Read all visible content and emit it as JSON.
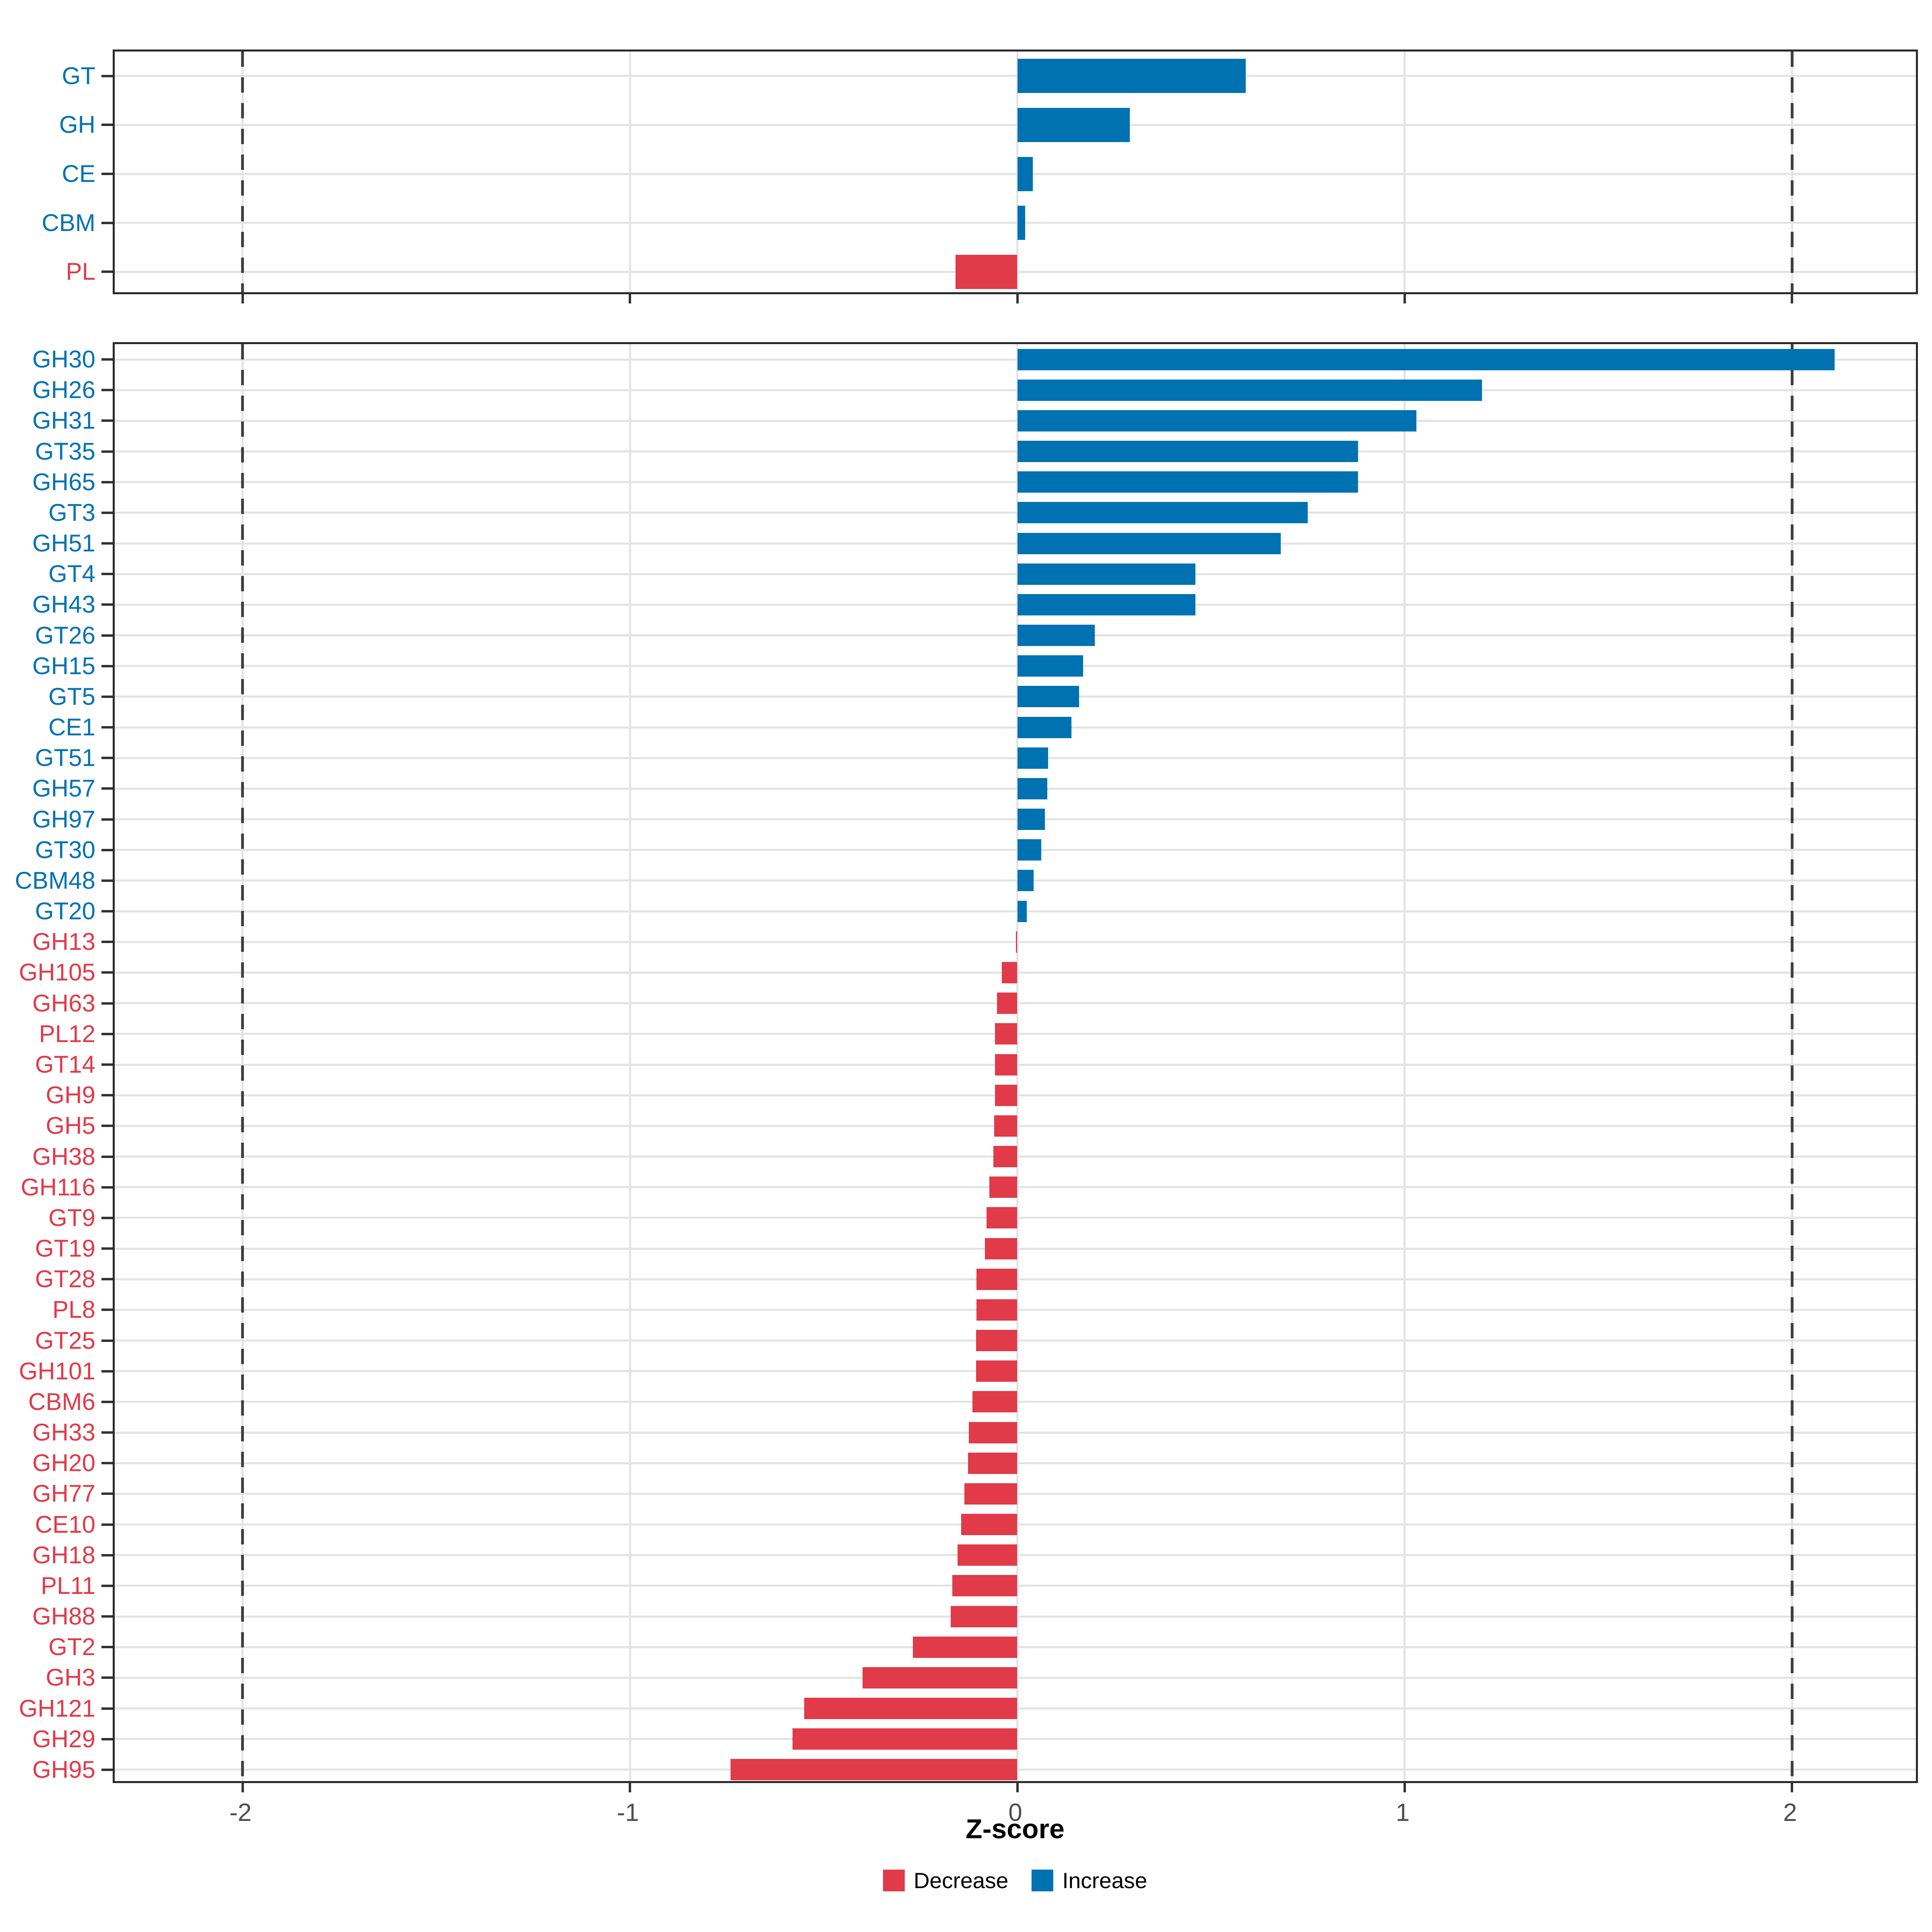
{
  "axis": {
    "xlabel": "Z-score",
    "ticks": [
      {
        "label": "-2",
        "value": -2
      },
      {
        "label": "-1",
        "value": -1
      },
      {
        "label": "0",
        "value": 0
      },
      {
        "label": "1",
        "value": 1
      },
      {
        "label": "2",
        "value": 2
      }
    ],
    "xlim": [
      -2.33,
      2.33
    ],
    "dashed_lines_at": [
      -2,
      2
    ],
    "grid": "on"
  },
  "colors": {
    "increase": "#0072b2",
    "decrease": "#e13a49",
    "grid": "#e3e3e3",
    "dash": "#404040",
    "tick_text": "#4d4d4d",
    "axis_line": "#2a2a2a"
  },
  "legend": {
    "items": [
      {
        "label": "Decrease",
        "color": "#e13a49"
      },
      {
        "label": "Increase",
        "color": "#0072b2"
      }
    ]
  },
  "chart_data": [
    {
      "type": "bar",
      "orientation": "horizontal",
      "panel": "cazyme-classes",
      "title": "",
      "xlabel": "Z-score",
      "ylabel": "",
      "xlim": [
        -2.33,
        2.33
      ],
      "categories": [
        "GT",
        "GH",
        "CE",
        "CBM",
        "PL"
      ],
      "values": [
        0.59,
        0.29,
        0.04,
        0.02,
        -0.16
      ]
    },
    {
      "type": "bar",
      "orientation": "horizontal",
      "panel": "cazyme-families",
      "title": "",
      "xlabel": "Z-score",
      "ylabel": "",
      "xlim": [
        -2.33,
        2.33
      ],
      "categories": [
        "GH30",
        "GH26",
        "GH31",
        "GT35",
        "GH65",
        "GT3",
        "GH51",
        "GT4",
        "GH43",
        "GT26",
        "GH15",
        "GT5",
        "CE1",
        "GT51",
        "GH57",
        "GH97",
        "GT30",
        "CBM48",
        "GT20",
        "GH13",
        "GH105",
        "GH63",
        "PL12",
        "GT14",
        "GH9",
        "GH5",
        "GH38",
        "GH116",
        "GT9",
        "GT19",
        "GT28",
        "PL8",
        "GT25",
        "GH101",
        "CBM6",
        "GH33",
        "GH20",
        "GH77",
        "CE10",
        "GH18",
        "PL11",
        "GH88",
        "GT2",
        "GH3",
        "GH121",
        "GH29",
        "GH95"
      ],
      "values": [
        2.11,
        1.2,
        1.03,
        0.88,
        0.88,
        0.75,
        0.68,
        0.46,
        0.46,
        0.2,
        0.17,
        0.16,
        0.14,
        0.08,
        0.077,
        0.071,
        0.062,
        0.042,
        0.024,
        -0.004,
        -0.04,
        -0.052,
        -0.058,
        -0.058,
        -0.058,
        -0.06,
        -0.062,
        -0.072,
        -0.08,
        -0.084,
        -0.105,
        -0.105,
        -0.106,
        -0.106,
        -0.116,
        -0.125,
        -0.127,
        -0.137,
        -0.145,
        -0.154,
        -0.168,
        -0.172,
        -0.27,
        -0.4,
        -0.55,
        -0.58,
        -0.74
      ]
    }
  ]
}
